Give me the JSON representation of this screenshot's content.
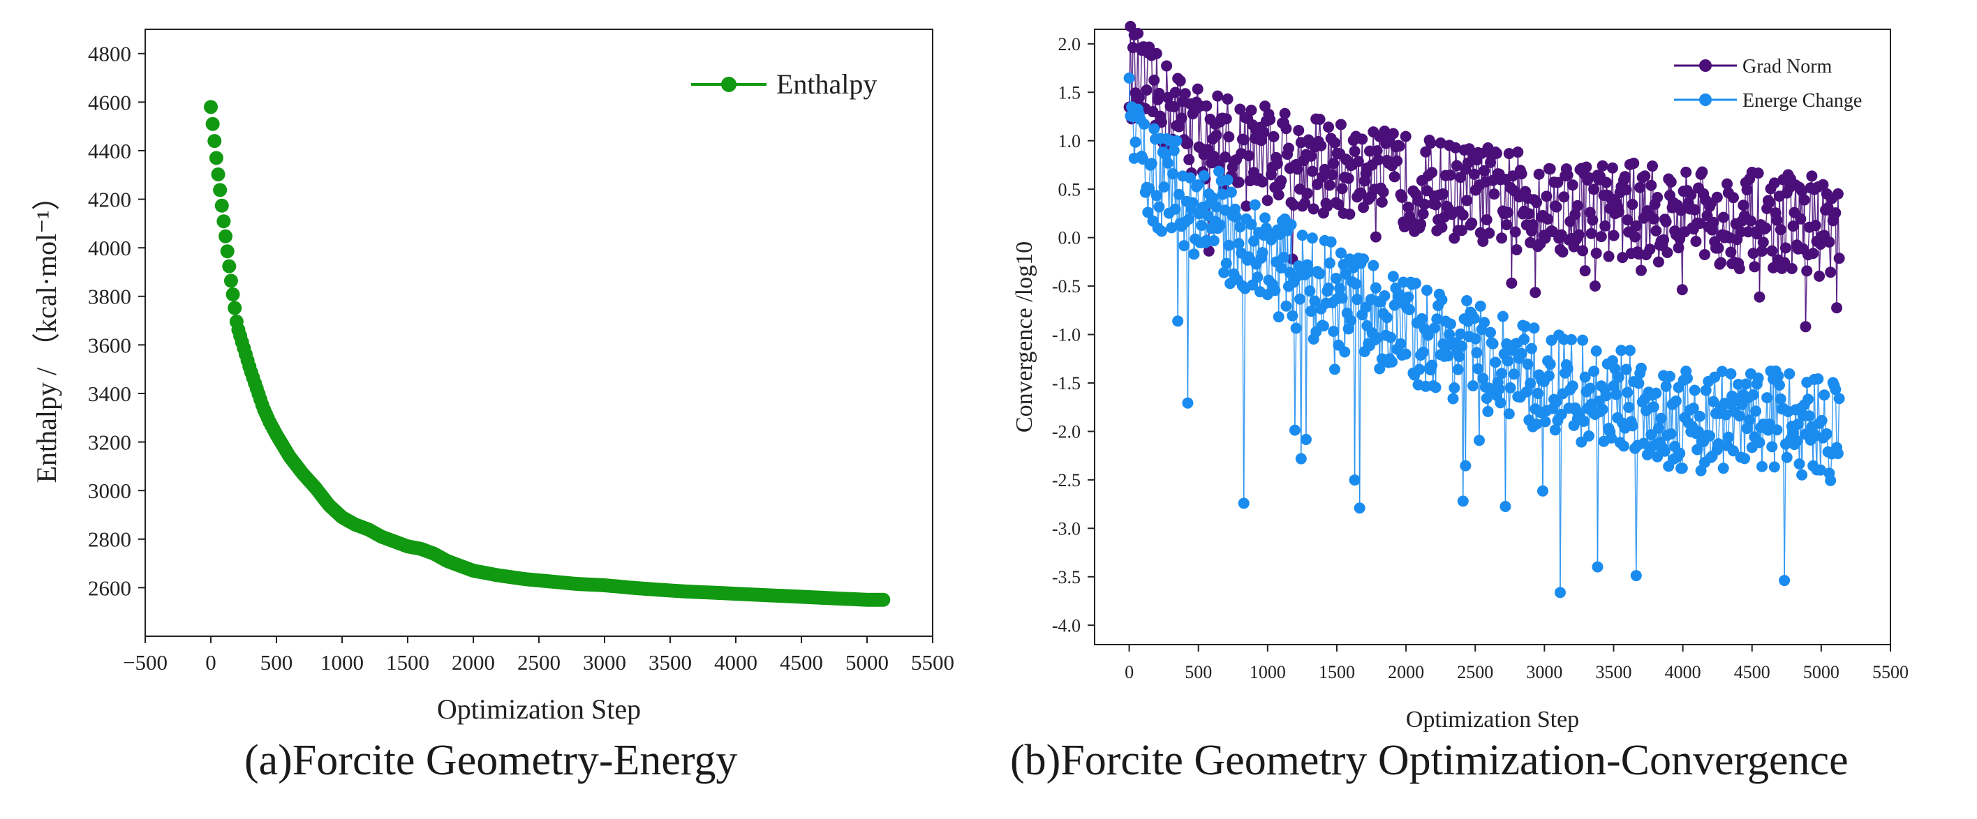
{
  "captions": {
    "a": "(a)Forcite Geometry-Energy",
    "b": "(b)Forcite Geometry Optimization-Convergence"
  },
  "chart_data": [
    {
      "type": "line",
      "title": "",
      "xlabel": "Optimization Step",
      "ylabel": "Enthalpy / （kcal·mol⁻¹）",
      "xlim": [
        -500,
        5500
      ],
      "ylim": [
        2400,
        4900
      ],
      "xticks": [
        "−500",
        "0",
        "500",
        "1000",
        "1500",
        "2000",
        "2500",
        "3000",
        "3500",
        "4000",
        "4500",
        "5000",
        "5500"
      ],
      "yticks": [
        "2600",
        "2800",
        "3000",
        "3200",
        "3400",
        "3600",
        "3800",
        "4000",
        "4200",
        "4400",
        "4600",
        "4800"
      ],
      "grid": false,
      "legend": "top-right",
      "colors": {
        "series": "#119911"
      },
      "series": [
        {
          "name": "Enthalpy",
          "x": [
            0,
            50,
            100,
            150,
            200,
            250,
            300,
            350,
            400,
            450,
            500,
            600,
            700,
            800,
            900,
            1000,
            1100,
            1200,
            1300,
            1400,
            1500,
            1600,
            1700,
            1800,
            1900,
            2000,
            2200,
            2400,
            2600,
            2800,
            3000,
            3200,
            3400,
            3600,
            3800,
            4000,
            4200,
            4400,
            4600,
            4800,
            5000,
            5130
          ],
          "y": [
            4580,
            4330,
            4100,
            3880,
            3680,
            3590,
            3500,
            3420,
            3340,
            3280,
            3230,
            3140,
            3070,
            3010,
            2940,
            2890,
            2860,
            2840,
            2810,
            2790,
            2770,
            2760,
            2740,
            2710,
            2690,
            2670,
            2650,
            2635,
            2625,
            2615,
            2610,
            2600,
            2592,
            2585,
            2580,
            2575,
            2570,
            2565,
            2560,
            2555,
            2550,
            2550
          ]
        }
      ]
    },
    {
      "type": "line",
      "title": "",
      "xlabel": "Optimization Step",
      "ylabel": "Convergence /log10",
      "xlim": [
        -250,
        5500
      ],
      "ylim": [
        -4.2,
        2.15
      ],
      "xticks": [
        "0",
        "500",
        "1000",
        "1500",
        "2000",
        "2500",
        "3000",
        "3500",
        "4000",
        "4500",
        "5000",
        "5500"
      ],
      "yticks": [
        "2.0",
        "1.5",
        "1.0",
        "0.5",
        "0.0",
        "-0.5",
        "-1.0",
        "-1.5",
        "-2.0",
        "-2.5",
        "-3.0",
        "-3.5",
        "-4.0"
      ],
      "grid": false,
      "legend": "top-right",
      "colors": {
        "grad_norm": "#4b0f7a",
        "energe_change": "#1a8cf0"
      },
      "series": [
        {
          "name": "Grad Norm",
          "x": [
            0,
            100,
            200,
            300,
            400,
            500,
            600,
            700,
            800,
            900,
            1000,
            1200,
            1400,
            1600,
            1800,
            2000,
            2200,
            2400,
            2600,
            2800,
            3000,
            3200,
            3400,
            3600,
            3800,
            4000,
            4200,
            4400,
            4600,
            4800,
            5000,
            5130
          ],
          "y": [
            1.75,
            1.55,
            1.4,
            1.3,
            1.2,
            1.1,
            1.05,
            1.0,
            0.95,
            0.92,
            0.88,
            0.8,
            0.72,
            0.68,
            0.62,
            0.58,
            0.52,
            0.48,
            0.44,
            0.4,
            0.36,
            0.33,
            0.3,
            0.28,
            0.25,
            0.22,
            0.2,
            0.18,
            0.17,
            0.16,
            0.15,
            0.1
          ]
        },
        {
          "name": "Energe Change",
          "x": [
            0,
            100,
            200,
            300,
            400,
            500,
            600,
            700,
            800,
            900,
            1000,
            1200,
            1400,
            1600,
            1800,
            2000,
            2200,
            2400,
            2600,
            2800,
            3000,
            3200,
            3400,
            3600,
            3800,
            4000,
            4200,
            4400,
            4600,
            4800,
            5000,
            5130
          ],
          "y": [
            1.1,
            0.8,
            0.6,
            0.5,
            0.4,
            0.3,
            0.2,
            0.1,
            0.0,
            -0.1,
            -0.2,
            -0.4,
            -0.55,
            -0.7,
            -0.8,
            -0.95,
            -1.05,
            -1.15,
            -1.3,
            -1.4,
            -1.5,
            -1.55,
            -1.65,
            -1.7,
            -1.8,
            -1.85,
            -1.9,
            -1.9,
            -1.85,
            -1.9,
            -1.95,
            -2.0
          ]
        }
      ]
    }
  ]
}
